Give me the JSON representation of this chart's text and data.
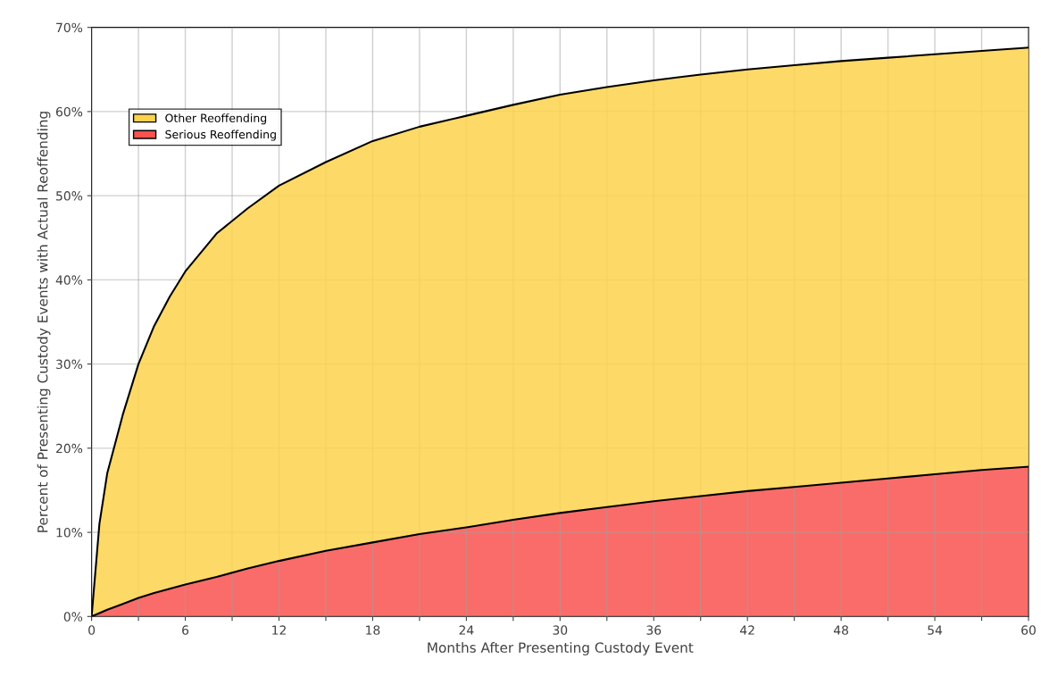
{
  "chart_data": {
    "type": "area",
    "stacked": true,
    "xlabel": "Months After Presenting Custody Event",
    "ylabel": "Percent of Presenting Custody Events with Actual Reoffending",
    "x": [
      0,
      0.5,
      1,
      2,
      3,
      4,
      5,
      6,
      8,
      10,
      12,
      15,
      18,
      21,
      24,
      27,
      30,
      33,
      36,
      39,
      42,
      45,
      48,
      51,
      54,
      57,
      60
    ],
    "series": [
      {
        "name": "Serious Reoffending",
        "color": "#f9524f",
        "values": [
          0,
          0.4,
          0.8,
          1.5,
          2.2,
          2.8,
          3.3,
          3.8,
          4.7,
          5.7,
          6.6,
          7.8,
          8.8,
          9.8,
          10.6,
          11.5,
          12.3,
          13.0,
          13.7,
          14.3,
          14.9,
          15.4,
          15.9,
          16.4,
          16.9,
          17.4,
          17.8
        ]
      },
      {
        "name": "Other Reoffending",
        "color": "#fdd24c",
        "values": [
          0,
          10.6,
          16.2,
          22.5,
          27.8,
          31.7,
          34.7,
          37.2,
          40.8,
          42.8,
          44.6,
          46.2,
          47.7,
          48.4,
          48.9,
          49.3,
          49.7,
          49.9,
          50.0,
          50.1,
          50.1,
          50.1,
          50.1,
          50.0,
          49.9,
          49.8,
          49.8
        ]
      }
    ],
    "xlim": [
      0,
      60
    ],
    "ylim": [
      0,
      70
    ],
    "xticks": [
      0,
      {
        "value": 3,
        "label": null
      },
      6,
      {
        "value": 9,
        "label": null
      },
      12,
      {
        "value": 15,
        "label": null
      },
      18,
      {
        "value": 21,
        "label": null
      },
      24,
      {
        "value": 27,
        "label": null
      },
      30,
      {
        "value": 33,
        "label": null
      },
      36,
      {
        "value": 39,
        "label": null
      },
      42,
      {
        "value": 45,
        "label": null
      },
      48,
      {
        "value": 51,
        "label": null
      },
      54,
      {
        "value": 57,
        "label": null
      },
      60
    ],
    "yticks": [
      {
        "value": 0,
        "label": "0%"
      },
      {
        "value": 10,
        "label": "10%"
      },
      {
        "value": 20,
        "label": "20%"
      },
      {
        "value": 30,
        "label": "30%"
      },
      {
        "value": 40,
        "label": "40%"
      },
      {
        "value": 50,
        "label": "50%"
      },
      {
        "value": 60,
        "label": "60%"
      },
      {
        "value": 70,
        "label": "70%"
      }
    ],
    "grid": true,
    "legend": "top left"
  }
}
